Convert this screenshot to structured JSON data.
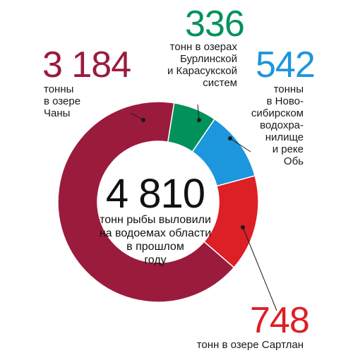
{
  "chart_data": {
    "type": "pie",
    "total": {
      "value": "4 810",
      "caption": [
        "тонн рыбы выловили",
        "на водоемах области",
        "в прошлом",
        "году"
      ]
    },
    "categories": [
      "Чаны",
      "Бурлинская и Карасукская системы",
      "Новосибирское водохранилище и река Обь",
      "Сартлан"
    ],
    "values": [
      3184,
      336,
      542,
      748
    ],
    "colors": [
      "#9b1b3c",
      "#00925a",
      "#1c96dc",
      "#dd1f26"
    ],
    "labels": [
      {
        "number": "3 184",
        "lines": [
          "тонны",
          "в озере",
          "Чаны"
        ]
      },
      {
        "number": "336",
        "lines": [
          "тонн в озерах",
          "Бурлинской",
          "и Карасукской",
          "систем"
        ]
      },
      {
        "number": "542",
        "lines": [
          "тонны",
          "в Ново-",
          "сибирском",
          "водохра-",
          "нилище",
          "и реке",
          "Обь"
        ]
      },
      {
        "number": "748",
        "lines": [
          "тонн в озере Сартлан"
        ]
      }
    ]
  }
}
